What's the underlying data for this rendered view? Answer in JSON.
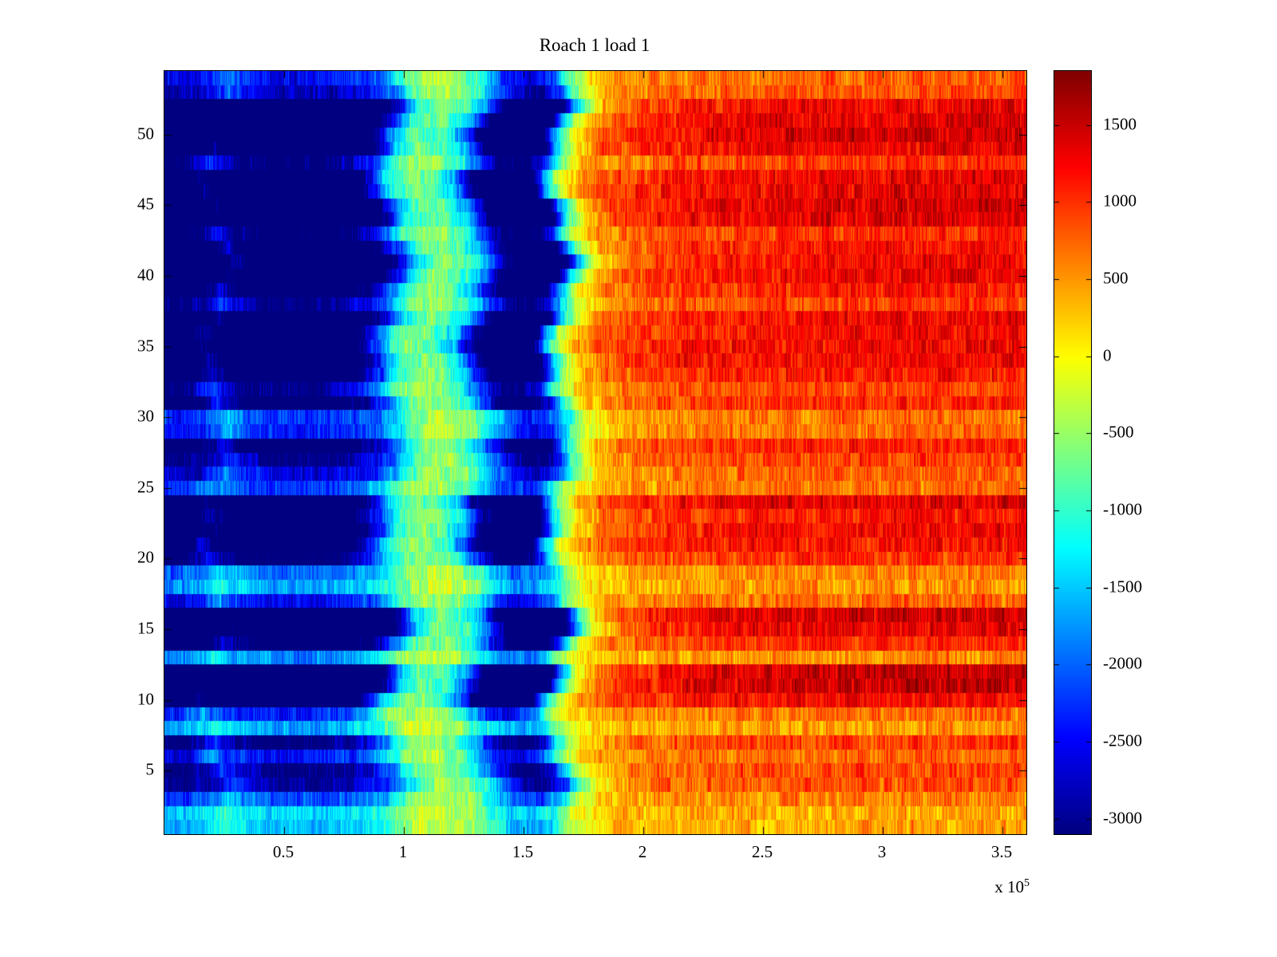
{
  "chart_data": {
    "type": "heatmap",
    "title": "Roach 1 load 1",
    "colormap": "jet",
    "n_rows": 54,
    "x_axis": {
      "range": [
        0,
        3.6
      ],
      "unit_multiplier": "1e5",
      "offset_label_prefix": "x 10",
      "offset_label_exponent": "5",
      "ticks": [
        {
          "label": "0.5",
          "value": 0.5
        },
        {
          "label": "1",
          "value": 1
        },
        {
          "label": "1.5",
          "value": 1.5
        },
        {
          "label": "2",
          "value": 2
        },
        {
          "label": "2.5",
          "value": 2.5
        },
        {
          "label": "3",
          "value": 3
        },
        {
          "label": "3.5",
          "value": 3.5
        }
      ]
    },
    "y_axis": {
      "range": [
        0.5,
        54.5
      ],
      "ticks": [
        {
          "label": "5",
          "value": 5
        },
        {
          "label": "10",
          "value": 10
        },
        {
          "label": "15",
          "value": 15
        },
        {
          "label": "20",
          "value": 20
        },
        {
          "label": "25",
          "value": 25
        },
        {
          "label": "30",
          "value": 30
        },
        {
          "label": "35",
          "value": 35
        },
        {
          "label": "40",
          "value": 40
        },
        {
          "label": "45",
          "value": 45
        },
        {
          "label": "50",
          "value": 50
        }
      ]
    },
    "colorbar": {
      "min": -3100,
      "max": 1850,
      "ticks": [
        {
          "label": "1500",
          "value": 1500
        },
        {
          "label": "1000",
          "value": 1000
        },
        {
          "label": "500",
          "value": 500
        },
        {
          "label": "0",
          "value": 0
        },
        {
          "label": "-500",
          "value": -500
        },
        {
          "label": "-1000",
          "value": -1000
        },
        {
          "label": "-1500",
          "value": -1500
        },
        {
          "label": "-2000",
          "value": -2000
        },
        {
          "label": "-2500",
          "value": -2500
        },
        {
          "label": "-3000",
          "value": -3000
        }
      ]
    },
    "column_profile": [
      [
        0.0,
        -2900
      ],
      [
        0.1,
        -2850
      ],
      [
        0.17,
        -2450
      ],
      [
        0.22,
        -1950
      ],
      [
        0.28,
        -2400
      ],
      [
        0.4,
        -2800
      ],
      [
        0.55,
        -2850
      ],
      [
        0.7,
        -2750
      ],
      [
        0.85,
        -2350
      ],
      [
        0.93,
        -1650
      ],
      [
        1.0,
        -800
      ],
      [
        1.08,
        -420
      ],
      [
        1.18,
        -520
      ],
      [
        1.27,
        -1000
      ],
      [
        1.35,
        -2000
      ],
      [
        1.43,
        -2750
      ],
      [
        1.52,
        -2950
      ],
      [
        1.6,
        -2300
      ],
      [
        1.65,
        -1100
      ],
      [
        1.7,
        -350
      ],
      [
        1.76,
        150
      ],
      [
        1.85,
        480
      ],
      [
        2.0,
        640
      ],
      [
        2.3,
        760
      ],
      [
        2.7,
        810
      ],
      [
        3.1,
        840
      ],
      [
        3.6,
        860
      ]
    ],
    "row_gain": [
      0.55,
      0.5,
      0.75,
      1.05,
      1.1,
      0.9,
      1.15,
      0.6,
      0.85,
      1.5,
      1.85,
      1.8,
      0.65,
      1.3,
      1.6,
      1.75,
      0.9,
      0.6,
      0.7,
      1.2,
      1.4,
      1.5,
      1.35,
      1.6,
      0.8,
      0.95,
      1.1,
      1.3,
      0.85,
      0.8,
      1.25,
      1.1,
      1.35,
      1.5,
      1.55,
      1.45,
      1.5,
      1.1,
      1.35,
      1.55,
      1.5,
      1.4,
      1.2,
      1.65,
      1.7,
      1.6,
      1.55,
      1.15,
      1.6,
      1.7,
      1.65,
      1.55,
      1.0,
      0.9
    ],
    "row_wiggle": {
      "a1": 0.05,
      "f1": 0.5,
      "a2": 0.025,
      "f2": 1.7,
      "p2": 1
    },
    "noise": {
      "seed": 1337,
      "streak_amp": 180,
      "cell_amp": 290,
      "streak_len": 5
    }
  }
}
